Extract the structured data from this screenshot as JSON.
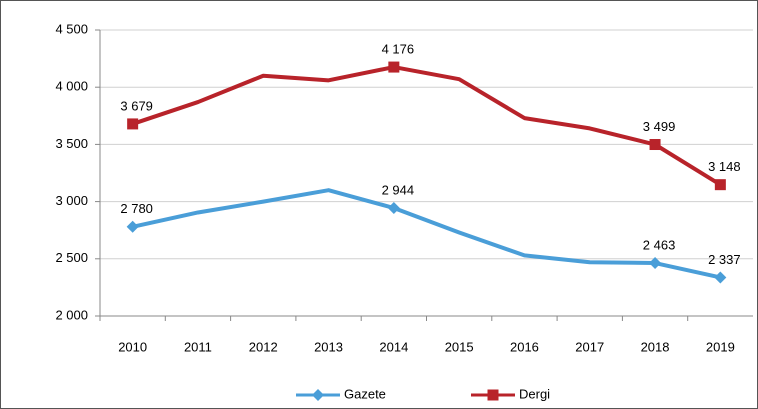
{
  "chart_data": {
    "type": "line",
    "categories": [
      "2010",
      "2011",
      "2012",
      "2013",
      "2014",
      "2015",
      "2016",
      "2017",
      "2018",
      "2019"
    ],
    "series": [
      {
        "name": "Gazete",
        "color": "#4a9ed8",
        "marker": "diamond",
        "values": [
          2780,
          2905,
          3000,
          3100,
          2944,
          2730,
          2530,
          2470,
          2463,
          2337
        ],
        "value_labels": [
          "2 780",
          null,
          null,
          null,
          "2 944",
          null,
          null,
          null,
          "2 463",
          "2 337"
        ]
      },
      {
        "name": "Dergi",
        "color": "#b8232a",
        "marker": "square",
        "values": [
          3679,
          3870,
          4100,
          4060,
          4176,
          4070,
          3730,
          3640,
          3499,
          3148
        ],
        "value_labels": [
          "3 679",
          null,
          null,
          null,
          "4 176",
          null,
          null,
          null,
          "3 499",
          "3 148"
        ]
      }
    ],
    "ylim": [
      2000,
      4500
    ],
    "yticks": [
      {
        "value": 2000,
        "label": "2 000"
      },
      {
        "value": 2500,
        "label": "2 500"
      },
      {
        "value": 3000,
        "label": "3 000"
      },
      {
        "value": 3500,
        "label": "3 500"
      },
      {
        "value": 4000,
        "label": "4 000"
      },
      {
        "value": 4500,
        "label": "4 500"
      }
    ],
    "grid": true,
    "legend": "bottom"
  }
}
